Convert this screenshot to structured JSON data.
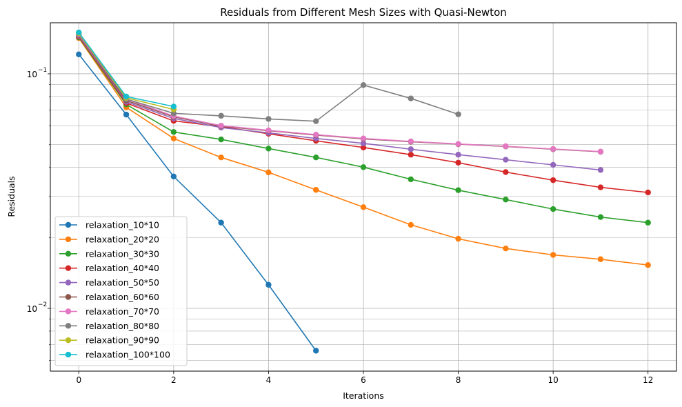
{
  "chart_data": {
    "type": "line",
    "title": "Residuals from Different Mesh Sizes with Quasi-Newton",
    "xlabel": "Iterations",
    "ylabel": "Residuals",
    "xlim": [
      -0.6,
      12.6
    ],
    "ylim": [
      0.0054,
      0.165
    ],
    "yscale": "log",
    "grid": true,
    "legend_position": "lower-left",
    "x_ticks": [
      0,
      2,
      4,
      6,
      8,
      10,
      12
    ],
    "x_tick_labels": [
      "0",
      "2",
      "4",
      "6",
      "8",
      "10",
      "12"
    ],
    "y_major_ticks": [
      0.01,
      0.1
    ],
    "y_major_tick_labels": [
      "10",
      "10"
    ],
    "y_major_tick_exponents": [
      "−2",
      "−1"
    ],
    "y_minor_ticks": [
      0.006,
      0.007,
      0.008,
      0.009,
      0.02,
      0.03,
      0.04,
      0.05,
      0.06,
      0.07,
      0.08,
      0.09
    ],
    "series": [
      {
        "name": "relaxation_10*10",
        "color": "#1f77b4",
        "x": [
          0,
          1,
          2,
          3,
          4,
          5
        ],
        "values": [
          0.121,
          0.067,
          0.0365,
          0.0232,
          0.0126,
          0.0066
        ]
      },
      {
        "name": "relaxation_20*20",
        "color": "#ff7f0e",
        "x": [
          0,
          1,
          2,
          3,
          4,
          5,
          6,
          7,
          8,
          9,
          10,
          11,
          12
        ],
        "values": [
          0.142,
          0.072,
          0.053,
          0.044,
          0.038,
          0.032,
          0.027,
          0.0227,
          0.0198,
          0.018,
          0.0169,
          0.0162,
          0.0153
        ]
      },
      {
        "name": "relaxation_30*30",
        "color": "#2ca02c",
        "x": [
          0,
          1,
          2,
          3,
          4,
          5,
          6,
          7,
          8,
          9,
          10,
          11,
          12
        ],
        "values": [
          0.143,
          0.074,
          0.0565,
          0.0525,
          0.048,
          0.044,
          0.04,
          0.0355,
          0.0319,
          0.0291,
          0.0265,
          0.0245,
          0.0232
        ]
      },
      {
        "name": "relaxation_40*40",
        "color": "#d62728",
        "x": [
          0,
          1,
          2,
          3,
          4,
          5,
          6,
          7,
          8,
          9,
          10,
          11,
          12
        ],
        "values": [
          0.144,
          0.075,
          0.063,
          0.0595,
          0.0555,
          0.0518,
          0.0485,
          0.0452,
          0.0418,
          0.0381,
          0.0352,
          0.0328,
          0.0312
        ]
      },
      {
        "name": "relaxation_50*50",
        "color": "#9467bd",
        "x": [
          0,
          1,
          2,
          3,
          4,
          5,
          6,
          7,
          8,
          9,
          10,
          11
        ],
        "values": [
          0.145,
          0.076,
          0.0645,
          0.059,
          0.056,
          0.053,
          0.0505,
          0.0477,
          0.0452,
          0.043,
          0.0409,
          0.0389
        ]
      },
      {
        "name": "relaxation_60*60",
        "color": "#8c564b",
        "x": [
          0,
          1,
          2,
          3,
          4,
          5,
          6,
          7,
          8,
          9,
          10,
          11
        ],
        "values": [
          0.146,
          0.077,
          0.0655,
          0.0598,
          0.0572,
          0.0548,
          0.0528,
          0.0513,
          0.0501,
          0.049,
          0.0477,
          0.0465
        ]
      },
      {
        "name": "relaxation_70*70",
        "color": "#e377c2",
        "x": [
          0,
          1,
          2,
          3,
          4,
          5,
          6,
          7,
          8,
          9,
          10,
          11
        ],
        "values": [
          0.147,
          0.078,
          0.066,
          0.0601,
          0.0574,
          0.055,
          0.053,
          0.0515,
          0.0502,
          0.0491,
          0.0478,
          0.0466
        ]
      },
      {
        "name": "relaxation_80*80",
        "color": "#7f7f7f",
        "x": [
          0,
          1,
          2,
          3,
          4,
          5,
          6,
          7,
          8
        ],
        "values": [
          0.148,
          0.078,
          0.0678,
          0.0662,
          0.0642,
          0.0628,
          0.0895,
          0.0785,
          0.0672
        ]
      },
      {
        "name": "relaxation_90*90",
        "color": "#bcbd22",
        "x": [
          0,
          1,
          2
        ],
        "values": [
          0.149,
          0.079,
          0.0705
        ]
      },
      {
        "name": "relaxation_100*100",
        "color": "#17becf",
        "x": [
          0,
          1,
          2
        ],
        "values": [
          0.15,
          0.08,
          0.0725
        ]
      }
    ]
  }
}
